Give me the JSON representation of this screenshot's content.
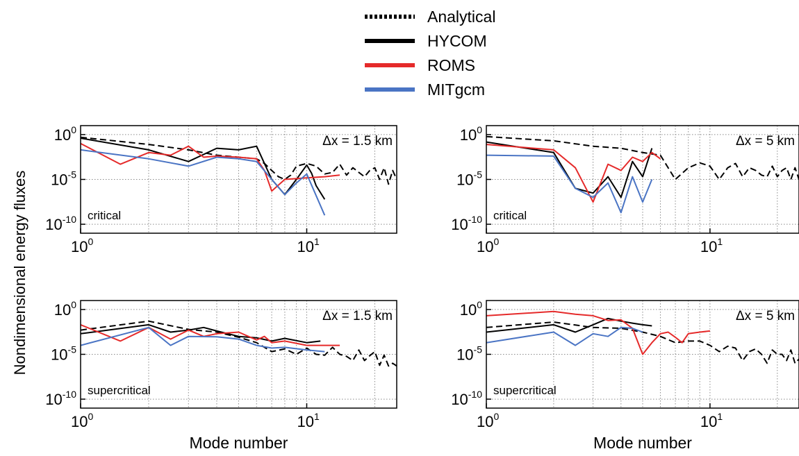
{
  "legend": [
    {
      "label": "Analytical",
      "color": "#000000",
      "dash": true
    },
    {
      "label": "HYCOM",
      "color": "#000000",
      "dash": false
    },
    {
      "label": "ROMS",
      "color": "#e52a2a",
      "dash": false
    },
    {
      "label": "MITgcm",
      "color": "#4a74c4",
      "dash": false
    }
  ],
  "ylabel": "Nondimensional energy fluxes",
  "chart_data": [
    {
      "type": "line",
      "scale": "log-log",
      "annotation": "critical",
      "dx_label": "Δx = 1.5 km",
      "xlabel": "",
      "xlim": [
        1,
        25
      ],
      "ylim": [
        1e-11,
        10
      ],
      "xticks": [
        {
          "value": 1,
          "base": "10",
          "exp": "0"
        },
        {
          "value": 10,
          "base": "10",
          "exp": "1"
        }
      ],
      "yticks": [
        {
          "value": 1,
          "base": "10",
          "exp": "0"
        },
        {
          "value": 1e-05,
          "base": "10",
          "exp": "-5"
        },
        {
          "value": 1e-10,
          "base": "10",
          "exp": "-10"
        }
      ],
      "series": [
        {
          "name": "Analytical",
          "color": "#000000",
          "dash": true,
          "x": [
            1,
            2,
            3,
            4,
            5,
            6,
            6.5,
            7,
            7.5,
            8,
            8.5,
            9,
            10,
            11,
            12,
            13,
            14,
            15,
            16,
            17,
            18,
            19,
            20,
            21,
            22,
            23,
            24,
            25
          ],
          "y": [
            0.5,
            0.08,
            0.02,
            0.005,
            0.003,
            0.002,
            0.0006,
            0.0001,
            2e-05,
            1e-05,
            3e-05,
            0.0003,
            0.0006,
            0.0003,
            4e-05,
            6e-05,
            0.0005,
            3e-05,
            0.0002,
            6e-05,
            2e-05,
            0.0001,
            0.0002,
            1e-05,
            0.0002,
            3e-06,
            0.0001,
            1e-05
          ]
        },
        {
          "name": "HYCOM",
          "color": "#000000",
          "dash": false,
          "x": [
            1,
            2,
            3,
            4,
            5,
            6,
            7,
            8,
            9,
            10,
            10.5,
            11,
            12
          ],
          "y": [
            0.4,
            0.02,
            0.001,
            0.03,
            0.02,
            0.05,
            1e-05,
            2e-07,
            1e-05,
            0.0004,
            5e-05,
            2e-06,
            6e-08
          ]
        },
        {
          "name": "ROMS",
          "color": "#e52a2a",
          "dash": false,
          "x": [
            1,
            1.5,
            2,
            2.5,
            3,
            3.5,
            4,
            5,
            6,
            6.5,
            7,
            8,
            10,
            12,
            14
          ],
          "y": [
            0.1,
            0.0005,
            0.01,
            0.005,
            0.05,
            0.003,
            0.004,
            0.003,
            0.002,
            0.0001,
            5e-07,
            1e-05,
            1.5e-05,
            2e-05,
            3e-05
          ]
        },
        {
          "name": "MITgcm",
          "color": "#4a74c4",
          "dash": false,
          "x": [
            1,
            2,
            3,
            4,
            5,
            6,
            7,
            8,
            9,
            10,
            12
          ],
          "y": [
            0.02,
            0.002,
            0.0003,
            0.003,
            0.002,
            0.001,
            1e-05,
            2e-07,
            4e-06,
            4e-05,
            1e-09
          ]
        }
      ]
    },
    {
      "type": "line",
      "scale": "log-log",
      "annotation": "critical",
      "dx_label": "Δx = 5 km",
      "xlabel": "",
      "xlim": [
        1,
        25
      ],
      "ylim": [
        1e-11,
        10
      ],
      "xticks": [
        {
          "value": 1,
          "base": "10",
          "exp": "0"
        },
        {
          "value": 10,
          "base": "10",
          "exp": "1"
        }
      ],
      "yticks": [
        {
          "value": 1,
          "base": "10",
          "exp": "0"
        },
        {
          "value": 1e-05,
          "base": "10",
          "exp": "-5"
        },
        {
          "value": 1e-10,
          "base": "10",
          "exp": "-10"
        }
      ],
      "series": [
        {
          "name": "Analytical",
          "color": "#000000",
          "dash": true,
          "x": [
            1,
            2,
            3,
            4,
            5,
            6,
            7,
            8,
            9,
            10,
            11,
            12,
            13,
            14,
            15,
            16,
            17,
            18,
            19,
            20,
            21,
            22,
            23,
            24,
            25
          ],
          "y": [
            0.6,
            0.2,
            0.05,
            0.03,
            0.01,
            0.005,
            1e-05,
            0.0002,
            0.0007,
            0.0003,
            1e-05,
            0.0002,
            0.0006,
            2e-05,
            0.0002,
            0.0001,
            3e-05,
            2e-05,
            0.0003,
            2e-05,
            0.0001,
            0.0002,
            1e-05,
            0.0002,
            1e-05
          ]
        },
        {
          "name": "HYCOM",
          "color": "#000000",
          "dash": false,
          "x": [
            1,
            2,
            2.5,
            3,
            3.5,
            4,
            4.5,
            5,
            5.5
          ],
          "y": [
            0.15,
            0.01,
            1e-06,
            3e-07,
            2e-05,
            1e-07,
            0.001,
            2e-05,
            0.03
          ]
        },
        {
          "name": "ROMS",
          "color": "#e52a2a",
          "dash": false,
          "x": [
            1,
            2,
            2.5,
            3,
            3.5,
            4,
            4.5,
            5,
            5.5,
            6
          ],
          "y": [
            0.08,
            0.02,
            0.0002,
            3e-08,
            0.0005,
            0.0001,
            0.003,
            0.001,
            0.01,
            0.002
          ]
        },
        {
          "name": "MITgcm",
          "color": "#4a74c4",
          "dash": false,
          "x": [
            1,
            2,
            2.5,
            3,
            3.5,
            4,
            4.5,
            5,
            5.5
          ],
          "y": [
            0.005,
            0.004,
            1e-06,
            1e-07,
            4e-06,
            2e-09,
            2e-05,
            3e-08,
            1e-05
          ]
        }
      ]
    },
    {
      "type": "line",
      "scale": "log-log",
      "annotation": "supercritical",
      "dx_label": "Δx = 1.5 km",
      "xlabel": "Mode number",
      "xlim": [
        1,
        25
      ],
      "ylim": [
        1e-11,
        10
      ],
      "xticks": [
        {
          "value": 1,
          "base": "10",
          "exp": "0"
        },
        {
          "value": 10,
          "base": "10",
          "exp": "1"
        }
      ],
      "yticks": [
        {
          "value": 1,
          "base": "10",
          "exp": "0"
        },
        {
          "value": 1e-05,
          "base": "10",
          "exp": "-5"
        },
        {
          "value": 1e-10,
          "base": "10",
          "exp": "-10"
        }
      ],
      "series": [
        {
          "name": "Analytical",
          "color": "#000000",
          "dash": true,
          "x": [
            1,
            2,
            3,
            4,
            5,
            6,
            7,
            8,
            9,
            10,
            11,
            12,
            13,
            14,
            15,
            16,
            17,
            18,
            19,
            20,
            21,
            22,
            23,
            24,
            25
          ],
          "y": [
            0.005,
            0.05,
            0.006,
            0.003,
            0.0008,
            0.0002,
            2e-05,
            4e-05,
            1e-05,
            5e-05,
            1e-05,
            8e-06,
            6e-05,
            1e-05,
            6e-06,
            2e-06,
            3e-05,
            2e-06,
            7e-06,
            2e-05,
            6e-07,
            8e-06,
            5e-07,
            1e-06,
            5e-07
          ]
        },
        {
          "name": "HYCOM",
          "color": "#000000",
          "dash": false,
          "x": [
            1,
            2,
            2.5,
            3,
            3.5,
            4,
            5,
            6,
            7,
            8,
            10,
            11.5
          ],
          "y": [
            0.002,
            0.02,
            0.003,
            0.005,
            0.01,
            0.004,
            0.001,
            0.0007,
            0.0003,
            0.0006,
            0.0002,
            0.0003
          ]
        },
        {
          "name": "ROMS",
          "color": "#e52a2a",
          "dash": false,
          "x": [
            1,
            1.5,
            2,
            2.5,
            3,
            3.5,
            4,
            5,
            6,
            6.5,
            7,
            8,
            10,
            12,
            14
          ],
          "y": [
            0.02,
            0.0003,
            0.01,
            0.0005,
            0.005,
            0.001,
            0.002,
            0.003,
            0.0004,
            0.001,
            0.0002,
            0.0003,
            0.0001,
            0.0001,
            0.0001
          ]
        },
        {
          "name": "MITgcm",
          "color": "#4a74c4",
          "dash": false,
          "x": [
            1,
            2,
            2.5,
            3,
            4,
            5,
            6,
            7,
            8,
            10,
            12
          ],
          "y": [
            0.0001,
            0.01,
            0.0001,
            0.001,
            0.0009,
            0.0005,
            0.0001,
            5e-05,
            6e-05,
            3e-05,
            2e-05
          ]
        }
      ]
    },
    {
      "type": "line",
      "scale": "log-log",
      "annotation": "supercritical",
      "dx_label": "Δx = 5 km",
      "xlabel": "Mode number",
      "xlim": [
        1,
        25
      ],
      "ylim": [
        1e-11,
        10
      ],
      "xticks": [
        {
          "value": 1,
          "base": "10",
          "exp": "0"
        },
        {
          "value": 10,
          "base": "10",
          "exp": "1"
        }
      ],
      "yticks": [
        {
          "value": 1,
          "base": "10",
          "exp": "0"
        },
        {
          "value": 1e-05,
          "base": "10",
          "exp": "-5"
        },
        {
          "value": 1e-10,
          "base": "10",
          "exp": "-10"
        }
      ],
      "series": [
        {
          "name": "Analytical",
          "color": "#000000",
          "dash": true,
          "x": [
            1,
            2,
            3,
            4,
            5,
            6,
            7,
            8,
            9,
            10,
            11,
            12,
            13,
            14,
            15,
            16,
            17,
            18,
            19,
            20,
            21,
            22,
            23,
            24,
            25
          ],
          "y": [
            0.01,
            0.04,
            0.01,
            0.008,
            0.003,
            0.001,
            0.0002,
            0.0003,
            0.0003,
            0.0001,
            2e-05,
            8e-05,
            5e-05,
            2e-06,
            2e-05,
            4e-05,
            1e-05,
            1e-06,
            3e-05,
            1e-05,
            1e-05,
            2e-06,
            3e-05,
            1e-06,
            3e-06
          ]
        },
        {
          "name": "HYCOM",
          "color": "#000000",
          "dash": false,
          "x": [
            1,
            2,
            2.5,
            3,
            3.5,
            4,
            4.5,
            5,
            5.5
          ],
          "y": [
            0.003,
            0.02,
            0.003,
            0.02,
            0.1,
            0.05,
            0.03,
            0.02,
            0.015
          ]
        },
        {
          "name": "ROMS",
          "color": "#e52a2a",
          "dash": false,
          "x": [
            1,
            2,
            2.5,
            3,
            3.5,
            4,
            4.5,
            5,
            5.5,
            6,
            6.5,
            7,
            7.5,
            8,
            9,
            10
          ],
          "y": [
            0.2,
            0.6,
            0.3,
            0.2,
            0.06,
            0.07,
            0.008,
            1e-05,
            0.0002,
            0.002,
            0.003,
            0.0008,
            0.0002,
            0.002,
            0.003,
            0.004
          ]
        },
        {
          "name": "MITgcm",
          "color": "#4a74c4",
          "dash": false,
          "x": [
            1,
            2,
            2.5,
            3,
            3.5,
            4,
            4.5,
            5
          ],
          "y": [
            0.0002,
            0.003,
            0.0001,
            0.002,
            0.001,
            0.01,
            0.008,
            0.003
          ]
        }
      ]
    }
  ]
}
